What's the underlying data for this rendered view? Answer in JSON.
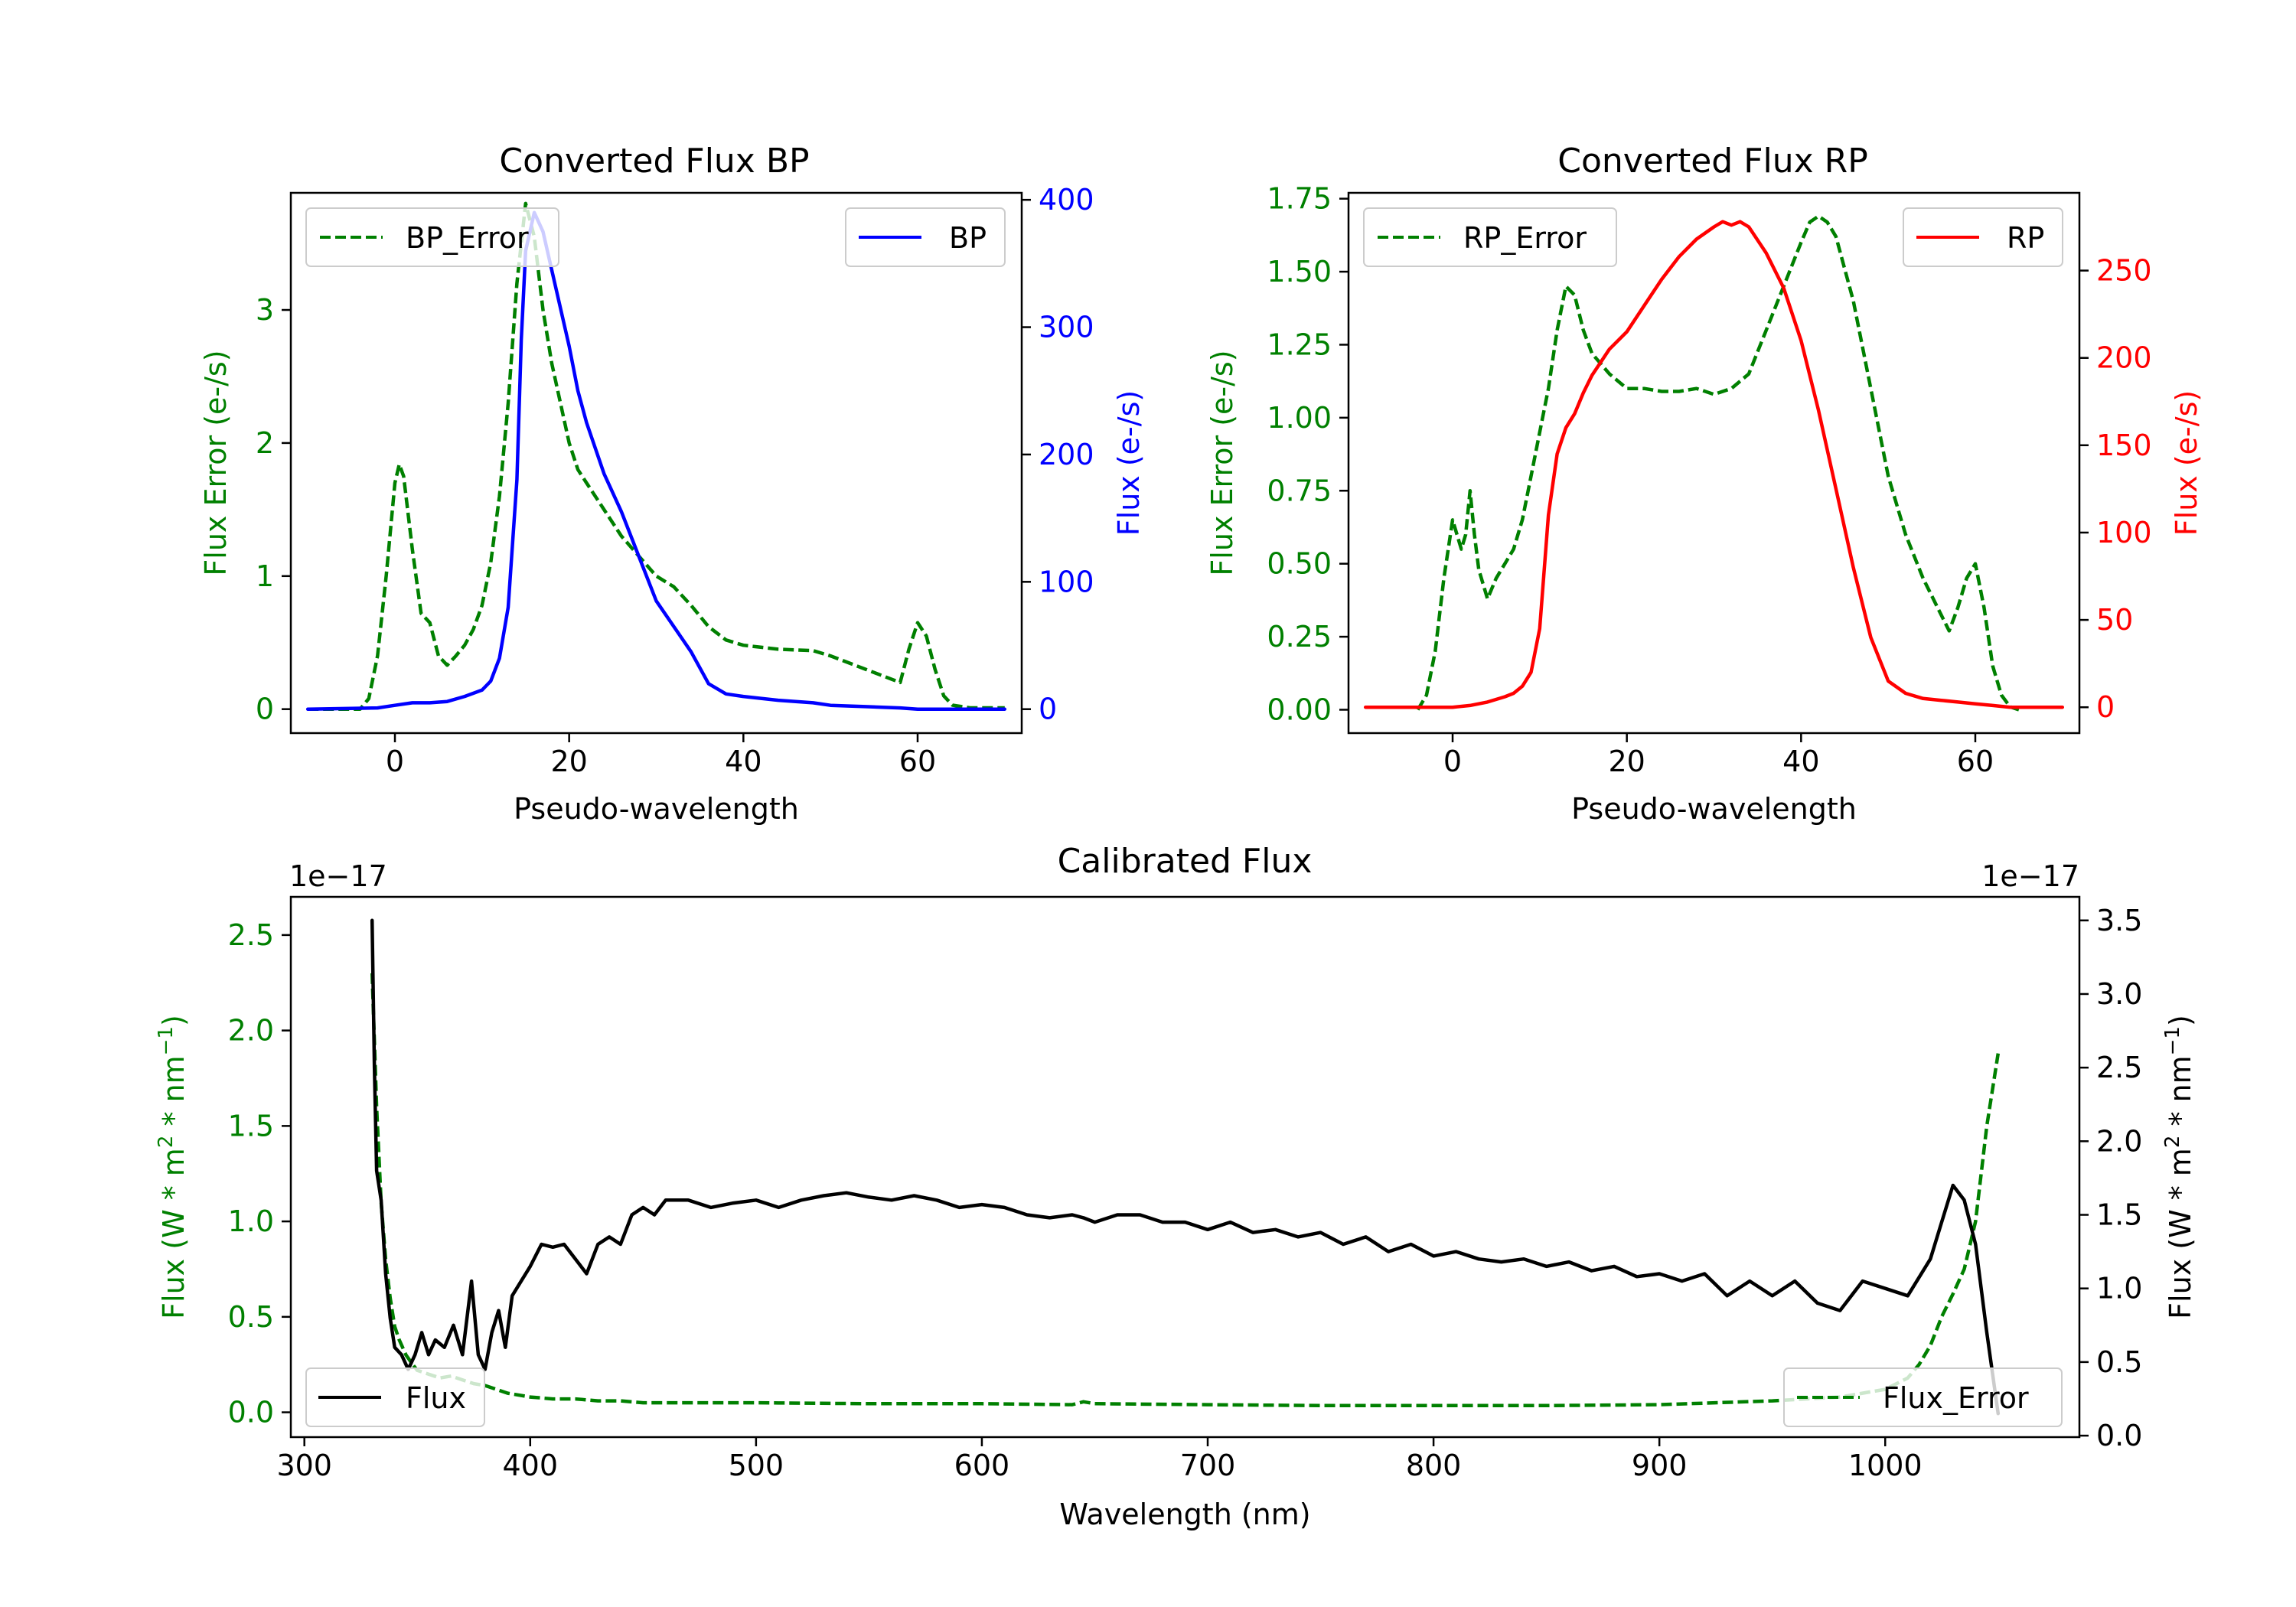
{
  "colors": {
    "error": "#008000",
    "bp": "#0000ff",
    "rp": "#ff0000",
    "flux": "#000000",
    "axis": "#000000"
  },
  "chart_data": [
    {
      "id": "bp",
      "type": "line",
      "title": "Converted Flux BP",
      "xlabel": "Pseudo-wavelength",
      "ylabel_left": "Flux Error (e-/s)",
      "ylabel_right": "Flux (e-/s)",
      "xlim": [
        -11.95,
        71.95
      ],
      "ylim_left": [
        -0.18,
        3.88
      ],
      "ylim_right": [
        -18.8,
        405.5
      ],
      "xticks": [
        0,
        20,
        40,
        60
      ],
      "xtick_labels": [
        "0",
        "20",
        "40",
        "60"
      ],
      "yticks_left": [
        0,
        1,
        2,
        3
      ],
      "ytick_labels_left": [
        "0",
        "1",
        "2",
        "3"
      ],
      "yticks_right": [
        0,
        100,
        200,
        300,
        400
      ],
      "ytick_labels_right": [
        "0",
        "100",
        "200",
        "300",
        "400"
      ],
      "legend_left": "BP_Error",
      "legend_right": "BP",
      "series": [
        {
          "name": "BP_Error",
          "axis": "left",
          "style": "dashed",
          "color": "#008000",
          "x": [
            -10,
            -4,
            -3,
            -2,
            -1,
            0,
            0.5,
            1,
            2,
            3,
            4,
            5,
            6,
            7,
            8,
            9,
            10,
            11,
            12,
            13,
            14,
            15,
            16,
            17,
            18,
            19,
            20,
            21,
            22,
            24,
            26,
            28,
            30,
            32,
            34,
            36,
            38,
            40,
            44,
            48,
            50,
            54,
            58,
            59,
            60,
            61,
            62,
            63,
            64,
            66,
            70
          ],
          "y": [
            0.0,
            0.0,
            0.08,
            0.4,
            1.0,
            1.7,
            1.84,
            1.75,
            1.2,
            0.72,
            0.65,
            0.4,
            0.33,
            0.4,
            0.48,
            0.6,
            0.78,
            1.1,
            1.6,
            2.3,
            3.2,
            3.8,
            3.55,
            3.0,
            2.6,
            2.3,
            2.0,
            1.8,
            1.7,
            1.5,
            1.3,
            1.15,
            1.0,
            0.92,
            0.78,
            0.62,
            0.52,
            0.48,
            0.45,
            0.44,
            0.4,
            0.3,
            0.2,
            0.45,
            0.65,
            0.55,
            0.3,
            0.1,
            0.03,
            0.01,
            0.01
          ]
        },
        {
          "name": "BP",
          "axis": "right",
          "style": "solid",
          "color": "#0000ff",
          "x": [
            -10,
            -2,
            0,
            2,
            4,
            6,
            8,
            10,
            11,
            12,
            13,
            14,
            14.5,
            15,
            16,
            17,
            18,
            19,
            20,
            21,
            22,
            24,
            26,
            28,
            30,
            32,
            34,
            36,
            38,
            40,
            44,
            48,
            50,
            54,
            58,
            60,
            64,
            70
          ],
          "y": [
            0,
            1,
            3,
            5,
            5,
            6,
            10,
            15,
            22,
            40,
            80,
            180,
            290,
            360,
            390,
            375,
            345,
            315,
            285,
            250,
            225,
            185,
            155,
            120,
            85,
            65,
            45,
            20,
            12,
            10,
            7,
            5,
            3,
            2,
            1,
            0,
            0,
            0
          ]
        }
      ]
    },
    {
      "id": "rp",
      "type": "line",
      "title": "Converted Flux RP",
      "xlabel": "Pseudo-wavelength",
      "ylabel_left": "Flux Error (e-/s)",
      "ylabel_right": "Flux (e-/s)",
      "xlim": [
        -11.95,
        71.95
      ],
      "ylim_left": [
        -0.08,
        1.77
      ],
      "ylim_right": [
        -14.8,
        294.5
      ],
      "xticks": [
        0,
        20,
        40,
        60
      ],
      "xtick_labels": [
        "0",
        "20",
        "40",
        "60"
      ],
      "yticks_left": [
        0,
        0.25,
        0.5,
        0.75,
        1.0,
        1.25,
        1.5,
        1.75
      ],
      "ytick_labels_left": [
        "0.00",
        "0.25",
        "0.50",
        "0.75",
        "1.00",
        "1.25",
        "1.50",
        "1.75"
      ],
      "yticks_right": [
        0,
        50,
        100,
        150,
        200,
        250
      ],
      "ytick_labels_right": [
        "0",
        "50",
        "100",
        "150",
        "200",
        "250"
      ],
      "legend_left": "RP_Error",
      "legend_right": "RP",
      "series": [
        {
          "name": "RP_Error",
          "axis": "left",
          "style": "dashed",
          "color": "#008000",
          "x": [
            -4,
            -3,
            -2,
            -1,
            0,
            1,
            1.5,
            2,
            2.5,
            3,
            4,
            5,
            6,
            7,
            8,
            9,
            10,
            11,
            12,
            13,
            14,
            15,
            16,
            18,
            20,
            22,
            24,
            26,
            28,
            30,
            32,
            34,
            36,
            38,
            40,
            41,
            42,
            43,
            44,
            46,
            48,
            50,
            52,
            54,
            56,
            57,
            58,
            59,
            60,
            61,
            62,
            63,
            64,
            65
          ],
          "y": [
            0.0,
            0.05,
            0.2,
            0.45,
            0.65,
            0.55,
            0.6,
            0.75,
            0.6,
            0.48,
            0.38,
            0.45,
            0.5,
            0.55,
            0.65,
            0.8,
            0.95,
            1.1,
            1.3,
            1.45,
            1.42,
            1.3,
            1.22,
            1.15,
            1.1,
            1.1,
            1.09,
            1.09,
            1.1,
            1.08,
            1.1,
            1.15,
            1.3,
            1.45,
            1.6,
            1.67,
            1.69,
            1.67,
            1.62,
            1.4,
            1.1,
            0.8,
            0.6,
            0.45,
            0.33,
            0.27,
            0.35,
            0.45,
            0.5,
            0.35,
            0.15,
            0.05,
            0.01,
            0.0
          ]
        },
        {
          "name": "RP",
          "axis": "right",
          "style": "solid",
          "color": "#ff0000",
          "x": [
            -10,
            0,
            2,
            4,
            6,
            7,
            8,
            9,
            10,
            11,
            12,
            13,
            14,
            15,
            16,
            18,
            20,
            22,
            24,
            26,
            28,
            30,
            31,
            32,
            33,
            34,
            36,
            38,
            40,
            42,
            44,
            46,
            48,
            50,
            52,
            54,
            56,
            58,
            60,
            62,
            64,
            70
          ],
          "y": [
            0,
            0,
            1,
            3,
            6,
            8,
            12,
            20,
            45,
            110,
            145,
            160,
            168,
            180,
            190,
            205,
            215,
            230,
            245,
            258,
            268,
            275,
            278,
            276,
            278,
            275,
            260,
            240,
            210,
            170,
            125,
            80,
            40,
            15,
            8,
            5,
            4,
            3,
            2,
            1,
            0,
            0
          ]
        }
      ]
    },
    {
      "id": "cal",
      "type": "line",
      "title": "Calibrated Flux",
      "xlabel": "Wavelength (nm)",
      "ylabel_left": "Flux (W * m² * nm⁻¹)",
      "ylabel_right": "Flux (W * m² * nm⁻¹)",
      "ylabel_base": "Flux (W * m",
      "ylabel_sup1": "2",
      "ylabel_mid": " * nm",
      "ylabel_sup2": "−1",
      "ylabel_end": ")",
      "offset_left": "1e−17",
      "offset_right": "1e−17",
      "xlim": [
        294,
        1086
      ],
      "ylim_left": [
        -0.13,
        2.7
      ],
      "ylim_right": [
        -0.01,
        3.66
      ],
      "xticks": [
        300,
        400,
        500,
        600,
        700,
        800,
        900,
        1000
      ],
      "xtick_labels": [
        "300",
        "400",
        "500",
        "600",
        "700",
        "800",
        "900",
        "1000"
      ],
      "yticks_left": [
        0,
        0.5,
        1.0,
        1.5,
        2.0,
        2.5
      ],
      "ytick_labels_left": [
        "0.0",
        "0.5",
        "1.0",
        "1.5",
        "2.0",
        "2.5"
      ],
      "yticks_right": [
        0,
        0.5,
        1.0,
        1.5,
        2.0,
        2.5,
        3.0,
        3.5
      ],
      "ytick_labels_right": [
        "0.0",
        "0.5",
        "1.0",
        "1.5",
        "2.0",
        "2.5",
        "3.0",
        "3.5"
      ],
      "legend_left": "Flux",
      "legend_right": "Flux_Error",
      "series": [
        {
          "name": "Flux_Error",
          "axis": "left",
          "style": "dashed",
          "color": "#008000",
          "x": [
            330,
            332,
            334,
            336,
            338,
            340,
            342,
            345,
            348,
            350,
            355,
            360,
            365,
            370,
            375,
            380,
            385,
            390,
            400,
            410,
            420,
            430,
            440,
            450,
            500,
            550,
            600,
            640,
            645,
            650,
            700,
            750,
            800,
            850,
            900,
            950,
            980,
            1000,
            1010,
            1015,
            1020,
            1025,
            1030,
            1035,
            1040,
            1045,
            1050
          ],
          "y": [
            2.3,
            1.6,
            1.1,
            0.8,
            0.6,
            0.45,
            0.38,
            0.3,
            0.25,
            0.22,
            0.2,
            0.18,
            0.19,
            0.17,
            0.15,
            0.14,
            0.12,
            0.1,
            0.08,
            0.07,
            0.07,
            0.06,
            0.06,
            0.05,
            0.05,
            0.045,
            0.045,
            0.04,
            0.055,
            0.045,
            0.04,
            0.035,
            0.035,
            0.035,
            0.04,
            0.06,
            0.08,
            0.12,
            0.18,
            0.25,
            0.35,
            0.5,
            0.62,
            0.75,
            1.0,
            1.5,
            1.88
          ]
        },
        {
          "name": "Flux",
          "axis": "right",
          "style": "solid",
          "color": "#000000",
          "x": [
            330,
            331,
            332,
            334,
            336,
            338,
            340,
            343,
            346,
            349,
            352,
            355,
            358,
            362,
            366,
            370,
            374,
            377,
            380,
            383,
            386,
            389,
            392,
            396,
            400,
            405,
            410,
            415,
            420,
            425,
            430,
            435,
            440,
            445,
            450,
            455,
            460,
            470,
            480,
            490,
            500,
            510,
            520,
            530,
            540,
            550,
            560,
            570,
            580,
            590,
            600,
            610,
            620,
            630,
            640,
            645,
            650,
            660,
            670,
            680,
            690,
            700,
            710,
            720,
            730,
            740,
            750,
            760,
            770,
            780,
            790,
            800,
            810,
            820,
            830,
            840,
            850,
            860,
            870,
            880,
            890,
            900,
            910,
            920,
            930,
            940,
            950,
            960,
            970,
            980,
            990,
            1000,
            1010,
            1020,
            1025,
            1030,
            1035,
            1040,
            1045,
            1050
          ],
          "y": [
            3.5,
            2.5,
            1.8,
            1.6,
            1.1,
            0.8,
            0.6,
            0.55,
            0.45,
            0.55,
            0.7,
            0.55,
            0.65,
            0.6,
            0.75,
            0.55,
            1.05,
            0.55,
            0.45,
            0.7,
            0.85,
            0.6,
            0.95,
            1.05,
            1.15,
            1.3,
            1.28,
            1.3,
            1.2,
            1.1,
            1.3,
            1.35,
            1.3,
            1.5,
            1.55,
            1.5,
            1.6,
            1.6,
            1.55,
            1.58,
            1.6,
            1.55,
            1.6,
            1.63,
            1.65,
            1.62,
            1.6,
            1.63,
            1.6,
            1.55,
            1.57,
            1.55,
            1.5,
            1.48,
            1.5,
            1.48,
            1.45,
            1.5,
            1.5,
            1.45,
            1.45,
            1.4,
            1.45,
            1.38,
            1.4,
            1.35,
            1.38,
            1.3,
            1.35,
            1.25,
            1.3,
            1.22,
            1.25,
            1.2,
            1.18,
            1.2,
            1.15,
            1.18,
            1.12,
            1.15,
            1.08,
            1.1,
            1.05,
            1.1,
            0.95,
            1.05,
            0.95,
            1.05,
            0.9,
            0.85,
            1.05,
            1.0,
            0.95,
            1.2,
            1.45,
            1.7,
            1.6,
            1.3,
            0.7,
            0.15
          ]
        }
      ]
    }
  ]
}
